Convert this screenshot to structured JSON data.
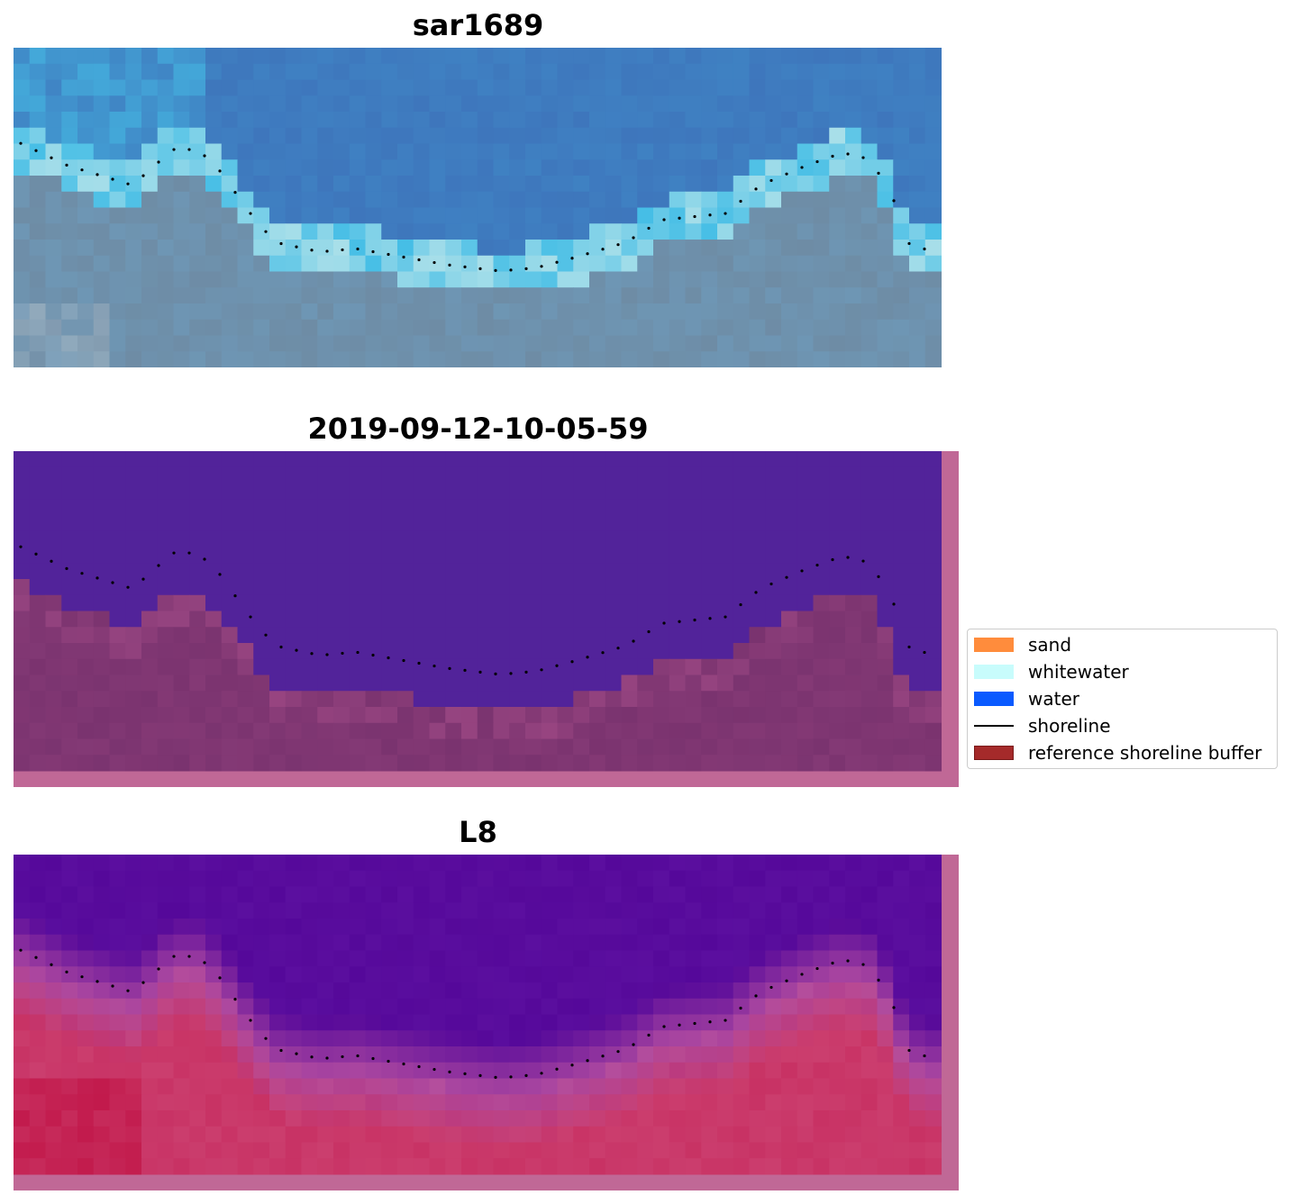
{
  "panels": [
    {
      "title": "sar1689",
      "kind": "rgb"
    },
    {
      "title": "2019-09-12-10-05-59",
      "kind": "classified"
    },
    {
      "title": "L8",
      "kind": "index"
    }
  ],
  "legend": [
    {
      "label": "sand",
      "color": "#ff8c3c",
      "type": "patch"
    },
    {
      "label": "whitewater",
      "color": "#c8fcfc",
      "type": "patch"
    },
    {
      "label": "water",
      "color": "#0a5aff",
      "type": "patch"
    },
    {
      "label": "shoreline",
      "color": "#000000",
      "type": "line"
    },
    {
      "label": "reference shoreline buffer",
      "color": "#a52a2a",
      "type": "patch"
    }
  ],
  "colors": {
    "water_class": "#52239a",
    "buffer_class": "#7a336f",
    "border_pink": "#c06896",
    "index_water": "#55089a",
    "index_land": "#c8305a"
  }
}
